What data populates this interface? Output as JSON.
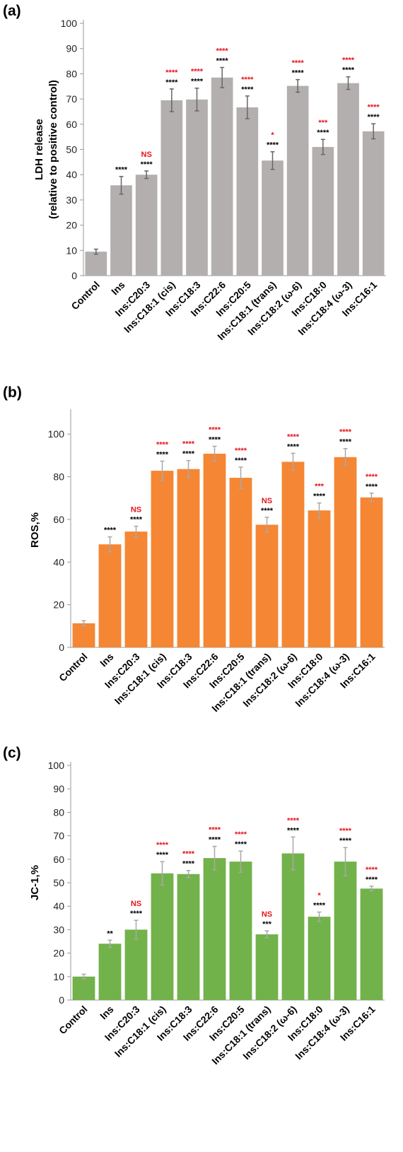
{
  "categories": [
    "Control",
    "Ins",
    "Ins:C20:3",
    "Ins:C18:1 (cis)",
    "Ins:C18:3",
    "Ins:C22:6",
    "Ins:C20:5",
    "Ins:C18:1 (trans)",
    "Ins:C18:2 (ω-6)",
    "Ins:C18:0",
    "Ins:C18:4 (ω-3)",
    "Ins:C16:1"
  ],
  "chart_data": [
    {
      "type": "bar",
      "panel_label": "(a)",
      "ylabel_lines": [
        "LDH release",
        "(relative to positive control)"
      ],
      "ylim": [
        0,
        100
      ],
      "yticks": [
        0,
        10,
        20,
        30,
        40,
        50,
        60,
        70,
        80,
        90,
        100
      ],
      "color": "#b3afae",
      "error_color": "#666666",
      "values": [
        9.5,
        35.8,
        40.0,
        69.5,
        69.8,
        78.5,
        66.7,
        45.6,
        75.2,
        51.0,
        76.3,
        57.2
      ],
      "errors": [
        1.0,
        3.5,
        1.5,
        4.5,
        4.5,
        4.0,
        4.5,
        3.5,
        2.5,
        3.0,
        2.5,
        3.0
      ],
      "sig_black": [
        "",
        "****",
        "****",
        "****",
        "****",
        "****",
        "****",
        "****",
        "****",
        "****",
        "****",
        "****"
      ],
      "sig_red": [
        "",
        "",
        "NS",
        "****",
        "****",
        "****",
        "****",
        "*",
        "****",
        "***",
        "****",
        "****"
      ]
    },
    {
      "type": "bar",
      "panel_label": "(b)",
      "ylabel_lines": [
        "ROS,%"
      ],
      "ylim": [
        0,
        110
      ],
      "yticks": [
        0,
        20,
        40,
        60,
        80,
        100
      ],
      "color": "#f58634",
      "error_color": "#a8a8a8",
      "values": [
        11.3,
        48.3,
        54.3,
        82.8,
        83.6,
        90.8,
        79.5,
        57.5,
        87.0,
        64.2,
        89.2,
        70.3
      ],
      "errors": [
        1.2,
        3.5,
        2.5,
        4.5,
        4.0,
        3.5,
        5.0,
        3.5,
        4.0,
        3.5,
        4.0,
        2.0
      ],
      "sig_black": [
        "",
        "****",
        "****",
        "****",
        "****",
        "****",
        "****",
        "****",
        "****",
        "****",
        "****",
        "****"
      ],
      "sig_red": [
        "",
        "",
        "NS",
        "****",
        "****",
        "****",
        "****",
        "NS",
        "****",
        "***",
        "****",
        "****"
      ]
    },
    {
      "type": "bar",
      "panel_label": "(c)",
      "ylabel_lines": [
        "JC-1,%"
      ],
      "ylim": [
        0,
        100
      ],
      "yticks": [
        0,
        10,
        20,
        30,
        40,
        50,
        60,
        70,
        80,
        90,
        100
      ],
      "color": "#72b24a",
      "error_color": "#a8a8a8",
      "values": [
        10.0,
        24.0,
        30.0,
        54.0,
        53.7,
        60.5,
        59.0,
        28.0,
        62.5,
        35.5,
        59.0,
        47.5
      ],
      "errors": [
        1.0,
        1.5,
        4.0,
        5.0,
        1.5,
        5.0,
        4.5,
        1.5,
        7.0,
        2.0,
        6.0,
        1.0
      ],
      "sig_black": [
        "",
        "**",
        "****",
        "****",
        "****",
        "****",
        "****",
        "***",
        "****",
        "****",
        "****",
        "****"
      ],
      "sig_red": [
        "",
        "",
        "NS",
        "****",
        "****",
        "****",
        "****",
        "NS",
        "****",
        "*",
        "****",
        "****"
      ]
    }
  ]
}
